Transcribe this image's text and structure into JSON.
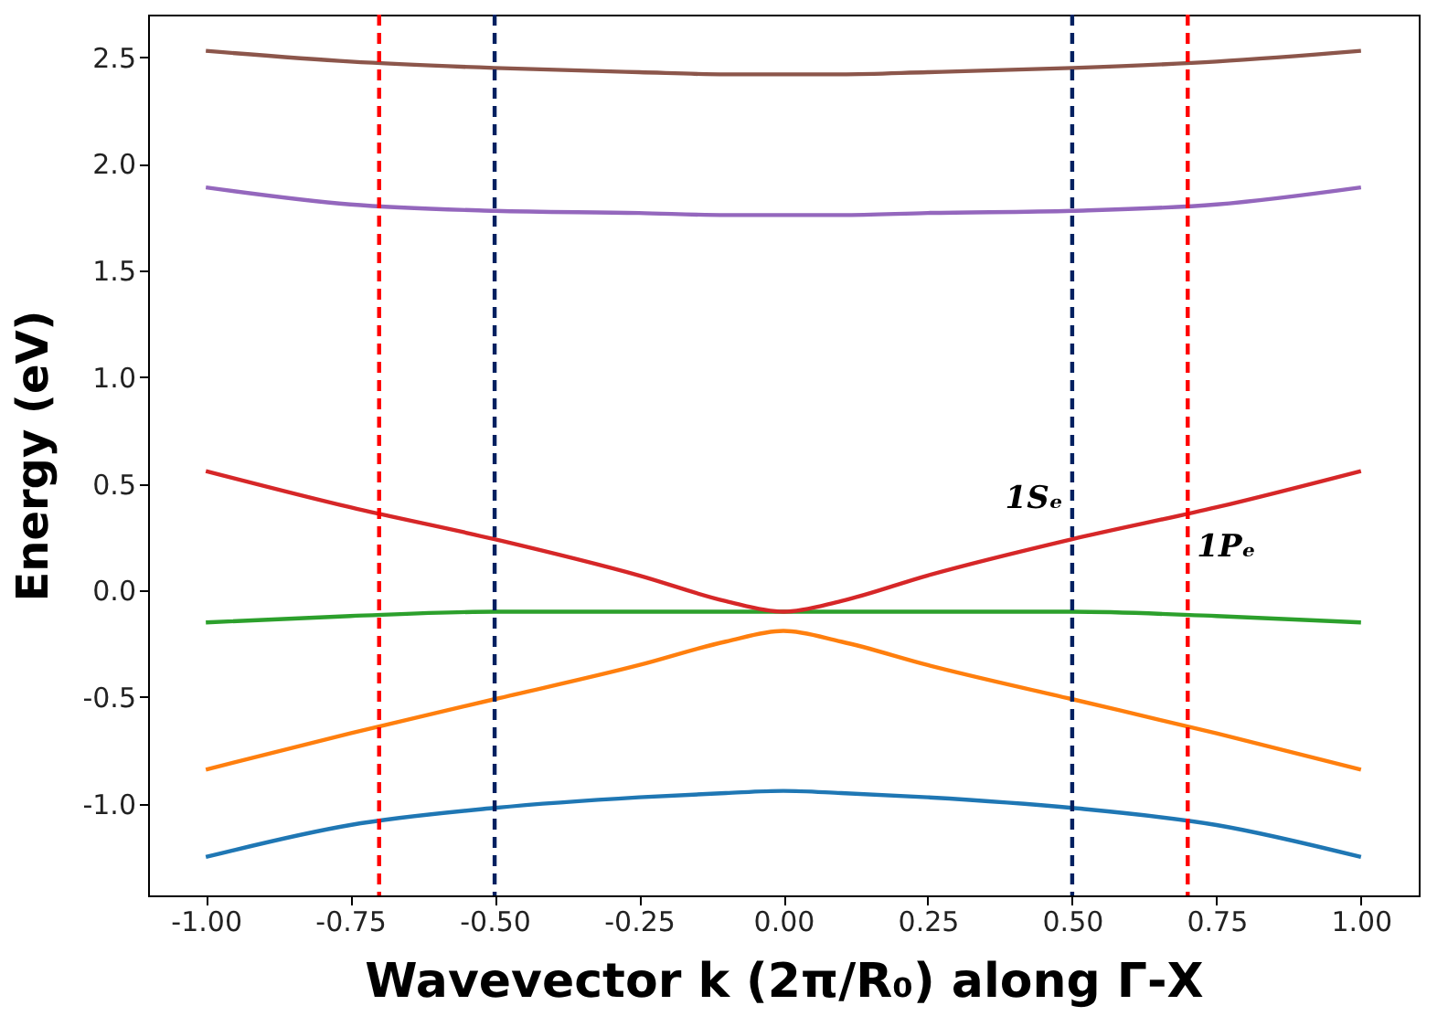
{
  "chart_data": {
    "type": "line",
    "xlabel": "Wavevector k (2π/R₀) along Γ-X",
    "ylabel": "Energy (eV)",
    "x": [
      -1,
      -0.75,
      -0.5,
      -0.25,
      -0.1,
      0,
      0.1,
      0.25,
      0.5,
      0.75,
      1
    ],
    "series": [
      {
        "color": "#1f77b4",
        "values": [
          -1.25,
          -1.1,
          -1.02,
          -0.97,
          -0.95,
          -0.94,
          -0.95,
          -0.97,
          -1.02,
          -1.1,
          -1.25
        ]
      },
      {
        "color": "#ff7f0e",
        "values": [
          -0.84,
          -0.67,
          -0.51,
          -0.35,
          -0.24,
          -0.19,
          -0.24,
          -0.35,
          -0.51,
          -0.67,
          -0.84
        ]
      },
      {
        "color": "#2ca02c",
        "values": [
          -0.15,
          -0.12,
          -0.1,
          -0.1,
          -0.1,
          -0.1,
          -0.1,
          -0.1,
          -0.1,
          -0.12,
          -0.15
        ]
      },
      {
        "color": "#d62728",
        "values": [
          0.56,
          0.39,
          0.24,
          0.07,
          -0.05,
          -0.1,
          -0.05,
          0.07,
          0.24,
          0.39,
          0.56
        ]
      },
      {
        "color": "#9467bd",
        "values": [
          1.89,
          1.81,
          1.78,
          1.77,
          1.76,
          1.76,
          1.76,
          1.77,
          1.78,
          1.81,
          1.89
        ]
      },
      {
        "color": "#8c564b",
        "values": [
          2.53,
          2.48,
          2.45,
          2.43,
          2.42,
          2.42,
          2.42,
          2.43,
          2.45,
          2.48,
          2.53
        ]
      }
    ],
    "xlim": [
      -1.1,
      1.1
    ],
    "ylim": [
      -1.43,
      2.7
    ],
    "xticks": [
      {
        "value": -1,
        "label": "-1.00"
      },
      {
        "value": -0.75,
        "label": "-0.75"
      },
      {
        "value": -0.5,
        "label": "-0.50"
      },
      {
        "value": -0.25,
        "label": "-0.25"
      },
      {
        "value": 0,
        "label": "0.00"
      },
      {
        "value": 0.25,
        "label": "0.25"
      },
      {
        "value": 0.5,
        "label": "0.50"
      },
      {
        "value": 0.75,
        "label": "0.75"
      },
      {
        "value": 1,
        "label": "1.00"
      }
    ],
    "yticks": [
      {
        "value": -1,
        "label": "-1.0"
      },
      {
        "value": -0.5,
        "label": "-0.5"
      },
      {
        "value": 0,
        "label": "0.0"
      },
      {
        "value": 0.5,
        "label": "0.5"
      },
      {
        "value": 1,
        "label": "1.0"
      },
      {
        "value": 1.5,
        "label": "1.5"
      },
      {
        "value": 2,
        "label": "2.0"
      },
      {
        "value": 2.5,
        "label": "2.5"
      }
    ],
    "ref_lines": [
      {
        "axis": "x",
        "value": -0.7,
        "color": "#ff0000",
        "line_style": "dashed"
      },
      {
        "axis": "x",
        "value": 0.7,
        "color": "#ff0000",
        "line_style": "dashed",
        "label": "1Pₑ"
      },
      {
        "axis": "x",
        "value": -0.5,
        "color": "#002060",
        "line_style": "dashed"
      },
      {
        "axis": "x",
        "value": 0.5,
        "color": "#002060",
        "line_style": "dashed",
        "label": "1Sₑ"
      }
    ],
    "grid": false,
    "legend": false
  }
}
